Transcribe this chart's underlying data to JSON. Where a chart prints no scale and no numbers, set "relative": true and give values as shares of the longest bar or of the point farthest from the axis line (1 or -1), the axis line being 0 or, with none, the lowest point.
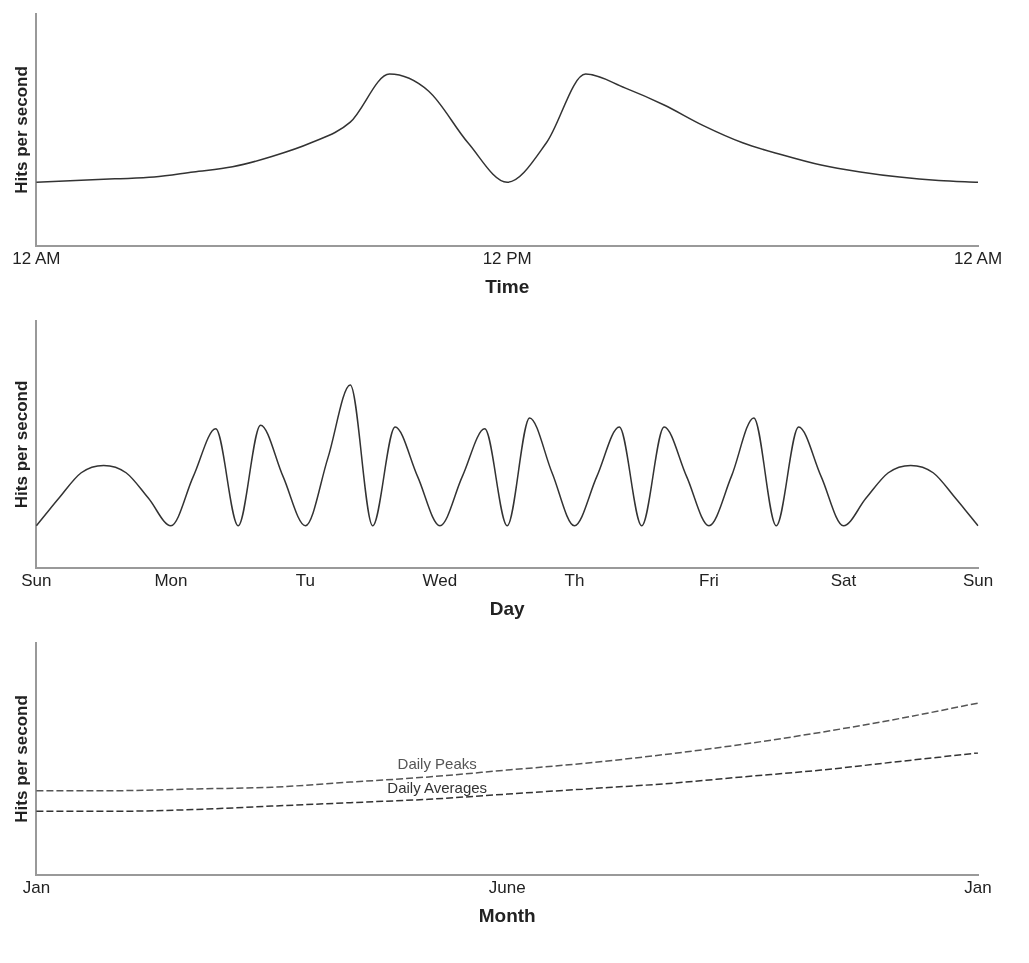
{
  "chart_data": [
    {
      "type": "line",
      "relative": true,
      "xlabel": "Time",
      "ylabel": "Hits per second",
      "grid": false,
      "legend": false,
      "marker": "none",
      "line_style": "solid",
      "categories": [
        "12 AM",
        null,
        null,
        null,
        null,
        null,
        null,
        null,
        null,
        null,
        null,
        null,
        "12 PM",
        null,
        null,
        null,
        null,
        null,
        null,
        null,
        null,
        null,
        null,
        null,
        "12 AM"
      ],
      "series": [
        {
          "color": "#333333",
          "values": [
            0.37,
            0.38,
            0.39,
            0.4,
            0.43,
            0.46,
            0.52,
            0.6,
            0.72,
            1,
            0.9,
            0.6,
            0.37,
            0.6,
            1,
            0.92,
            0.82,
            0.7,
            0.6,
            0.53,
            0.47,
            0.43,
            0.4,
            0.38,
            0.37
          ]
        }
      ]
    },
    {
      "type": "line",
      "relative": true,
      "xlabel": "Day",
      "ylabel": "Hits per second",
      "grid": false,
      "legend": false,
      "marker": "none",
      "line_style": "solid",
      "categories": [
        "Sun",
        null,
        null,
        null,
        null,
        null,
        "Mon",
        null,
        null,
        null,
        null,
        null,
        "Tu",
        null,
        null,
        null,
        null,
        null,
        "Wed",
        null,
        null,
        null,
        null,
        null,
        "Th",
        null,
        null,
        null,
        null,
        null,
        "Fri",
        null,
        null,
        null,
        null,
        null,
        "Sat",
        null,
        null,
        null,
        null,
        null,
        "Sun"
      ],
      "series": [
        {
          "color": "#333333",
          "values": [
            0.23,
            0.38,
            0.52,
            0.56,
            0.52,
            0.38,
            0.23,
            0.5,
            0.76,
            0.23,
            0.78,
            0.5,
            0.23,
            0.6,
            1,
            0.23,
            0.77,
            0.5,
            0.23,
            0.5,
            0.76,
            0.23,
            0.82,
            0.52,
            0.23,
            0.5,
            0.77,
            0.23,
            0.77,
            0.5,
            0.23,
            0.5,
            0.82,
            0.23,
            0.77,
            0.5,
            0.23,
            0.38,
            0.52,
            0.56,
            0.52,
            0.38,
            0.23
          ]
        }
      ]
    },
    {
      "type": "line",
      "relative": true,
      "xlabel": "Month",
      "ylabel": "Hits per second",
      "grid": false,
      "legend": false,
      "marker": "none",
      "categories": [
        "Jan",
        null,
        null,
        null,
        null,
        null,
        "June",
        null,
        null,
        null,
        null,
        null,
        "Jan"
      ],
      "series": [
        {
          "name": "Daily Peaks",
          "color": "#555555",
          "line_style": "dashed",
          "values": [
            0.49,
            0.49,
            0.5,
            0.51,
            0.54,
            0.57,
            0.61,
            0.65,
            0.7,
            0.76,
            0.83,
            0.91,
            1
          ]
        },
        {
          "name": "Daily Averages",
          "color": "#333333",
          "line_style": "dashed",
          "values": [
            0.37,
            0.37,
            0.38,
            0.4,
            0.42,
            0.44,
            0.47,
            0.5,
            0.53,
            0.57,
            0.61,
            0.66,
            0.71
          ]
        }
      ]
    }
  ]
}
